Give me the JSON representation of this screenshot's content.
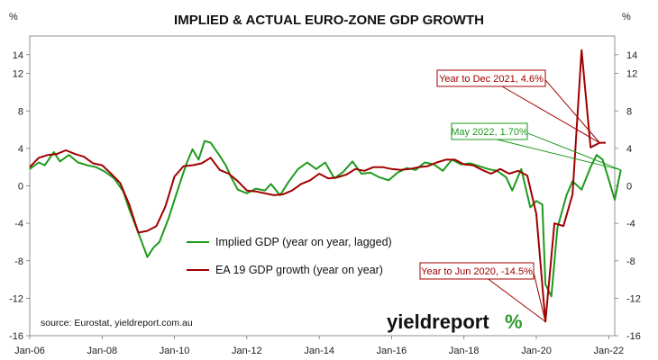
{
  "chart_data": {
    "type": "line",
    "title": "IMPLIED & ACTUAL EURO-ZONE GDP GROWTH",
    "left_unit": "%",
    "right_unit": "%",
    "xlim": [
      "2006-01",
      "2022-03"
    ],
    "ylim": [
      -16,
      16
    ],
    "yticks": [
      14,
      12,
      8,
      4,
      0,
      -4,
      -8,
      -12,
      -16
    ],
    "ytick_labels": [
      "14",
      "12",
      "8",
      "4",
      "0",
      "-4",
      "-8",
      "-12",
      "-16"
    ],
    "xticks": [
      "2006-01",
      "2008-01",
      "2010-01",
      "2012-01",
      "2014-01",
      "2016-01",
      "2018-01",
      "2020-01",
      "2022-01"
    ],
    "xtick_labels": [
      "Jan-06",
      "Jan-08",
      "Jan-10",
      "Jan-12",
      "Jan-14",
      "Jan-16",
      "Jan-18",
      "Jan-20",
      "Jan-22"
    ],
    "grid": false,
    "legend_position": "center-left",
    "series": [
      {
        "name": "Implied GDP (year on year, lagged)",
        "color": "#1e9a1e",
        "points": [
          [
            "2006-01",
            1.8
          ],
          [
            "2006-04",
            2.5
          ],
          [
            "2006-06",
            2.2
          ],
          [
            "2006-09",
            3.6
          ],
          [
            "2006-11",
            2.6
          ],
          [
            "2007-02",
            3.3
          ],
          [
            "2007-05",
            2.5
          ],
          [
            "2007-08",
            2.2
          ],
          [
            "2007-11",
            2.0
          ],
          [
            "2008-02",
            1.5
          ],
          [
            "2008-05",
            0.8
          ],
          [
            "2008-08",
            -0.6
          ],
          [
            "2008-10",
            -2.5
          ],
          [
            "2009-01",
            -5.0
          ],
          [
            "2009-04",
            -7.6
          ],
          [
            "2009-06",
            -6.6
          ],
          [
            "2009-08",
            -6.0
          ],
          [
            "2009-11",
            -3.5
          ],
          [
            "2010-01",
            -1.5
          ],
          [
            "2010-03",
            0.5
          ],
          [
            "2010-05",
            2.4
          ],
          [
            "2010-07",
            3.9
          ],
          [
            "2010-09",
            2.8
          ],
          [
            "2010-11",
            4.8
          ],
          [
            "2011-01",
            4.6
          ],
          [
            "2011-04",
            3.2
          ],
          [
            "2011-06",
            2.2
          ],
          [
            "2011-08",
            0.8
          ],
          [
            "2011-10",
            -0.4
          ],
          [
            "2012-01",
            -0.8
          ],
          [
            "2012-04",
            -0.3
          ],
          [
            "2012-07",
            -0.5
          ],
          [
            "2012-09",
            0.2
          ],
          [
            "2012-12",
            -1.0
          ],
          [
            "2013-03",
            0.5
          ],
          [
            "2013-06",
            1.8
          ],
          [
            "2013-09",
            2.5
          ],
          [
            "2013-12",
            1.8
          ],
          [
            "2014-03",
            2.5
          ],
          [
            "2014-06",
            0.8
          ],
          [
            "2014-09",
            1.5
          ],
          [
            "2014-12",
            2.6
          ],
          [
            "2015-03",
            1.3
          ],
          [
            "2015-06",
            1.4
          ],
          [
            "2015-09",
            0.9
          ],
          [
            "2015-12",
            0.6
          ],
          [
            "2016-03",
            1.4
          ],
          [
            "2016-06",
            1.9
          ],
          [
            "2016-09",
            1.7
          ],
          [
            "2016-12",
            2.5
          ],
          [
            "2017-03",
            2.3
          ],
          [
            "2017-06",
            1.6
          ],
          [
            "2017-09",
            2.8
          ],
          [
            "2017-12",
            2.3
          ],
          [
            "2018-03",
            2.4
          ],
          [
            "2018-06",
            2.1
          ],
          [
            "2018-09",
            1.8
          ],
          [
            "2018-12",
            1.6
          ],
          [
            "2019-03",
            0.9
          ],
          [
            "2019-05",
            -0.5
          ],
          [
            "2019-08",
            1.8
          ],
          [
            "2019-11",
            -2.3
          ],
          [
            "2020-01",
            -1.6
          ],
          [
            "2020-03",
            -2.0
          ],
          [
            "2020-04",
            -10.5
          ],
          [
            "2020-06",
            -11.8
          ],
          [
            "2020-08",
            -4.5
          ],
          [
            "2020-11",
            -1.0
          ],
          [
            "2021-01",
            0.5
          ],
          [
            "2021-04",
            -0.4
          ],
          [
            "2021-07",
            2.0
          ],
          [
            "2021-09",
            3.3
          ],
          [
            "2021-11",
            2.8
          ],
          [
            "2022-01",
            0.7
          ],
          [
            "2022-03",
            -1.5
          ],
          [
            "2022-05",
            1.7
          ]
        ]
      },
      {
        "name": "EA 19 GDP growth (year on year)",
        "color": "#a00000",
        "points": [
          [
            "2006-01",
            2.0
          ],
          [
            "2006-04",
            3.0
          ],
          [
            "2006-07",
            3.3
          ],
          [
            "2006-10",
            3.4
          ],
          [
            "2007-01",
            3.8
          ],
          [
            "2007-04",
            3.4
          ],
          [
            "2007-07",
            3.1
          ],
          [
            "2007-10",
            2.4
          ],
          [
            "2008-01",
            2.2
          ],
          [
            "2008-04",
            1.3
          ],
          [
            "2008-07",
            0.3
          ],
          [
            "2008-10",
            -2.0
          ],
          [
            "2009-01",
            -5.0
          ],
          [
            "2009-04",
            -4.8
          ],
          [
            "2009-07",
            -4.3
          ],
          [
            "2009-10",
            -2.2
          ],
          [
            "2010-01",
            1.0
          ],
          [
            "2010-04",
            2.1
          ],
          [
            "2010-07",
            2.2
          ],
          [
            "2010-10",
            2.4
          ],
          [
            "2011-01",
            3.0
          ],
          [
            "2011-04",
            1.7
          ],
          [
            "2011-07",
            1.3
          ],
          [
            "2011-10",
            0.5
          ],
          [
            "2012-01",
            -0.5
          ],
          [
            "2012-04",
            -0.6
          ],
          [
            "2012-07",
            -0.8
          ],
          [
            "2012-10",
            -1.0
          ],
          [
            "2013-01",
            -0.9
          ],
          [
            "2013-04",
            -0.5
          ],
          [
            "2013-07",
            0.2
          ],
          [
            "2013-10",
            0.6
          ],
          [
            "2014-01",
            1.3
          ],
          [
            "2014-04",
            0.8
          ],
          [
            "2014-07",
            0.9
          ],
          [
            "2014-10",
            1.2
          ],
          [
            "2015-01",
            1.8
          ],
          [
            "2015-04",
            1.6
          ],
          [
            "2015-07",
            2.0
          ],
          [
            "2015-10",
            2.0
          ],
          [
            "2016-01",
            1.8
          ],
          [
            "2016-04",
            1.7
          ],
          [
            "2016-07",
            1.8
          ],
          [
            "2016-10",
            2.0
          ],
          [
            "2017-01",
            2.1
          ],
          [
            "2017-04",
            2.5
          ],
          [
            "2017-07",
            2.8
          ],
          [
            "2017-10",
            2.8
          ],
          [
            "2018-01",
            2.3
          ],
          [
            "2018-04",
            2.2
          ],
          [
            "2018-07",
            1.7
          ],
          [
            "2018-10",
            1.3
          ],
          [
            "2019-01",
            1.8
          ],
          [
            "2019-04",
            1.3
          ],
          [
            "2019-07",
            1.6
          ],
          [
            "2019-10",
            1.1
          ],
          [
            "2020-01",
            -3.0
          ],
          [
            "2020-04",
            -14.5
          ],
          [
            "2020-07",
            -4.0
          ],
          [
            "2020-10",
            -4.3
          ],
          [
            "2021-01",
            -0.9
          ],
          [
            "2021-04",
            14.5
          ],
          [
            "2021-07",
            4.1
          ],
          [
            "2021-10",
            4.6
          ],
          [
            "2021-12",
            4.6
          ]
        ]
      }
    ],
    "annotations": [
      {
        "text": "Year to Dec 2021, 4.6%",
        "color": "#a00000",
        "point": [
          "2021-10",
          4.6
        ]
      },
      {
        "text": "May 2022, 1.70%",
        "color": "#1e9a1e",
        "point": [
          "2022-05",
          1.7
        ]
      },
      {
        "text": "Year to Jun 2020, -14.5%",
        "color": "#a00000",
        "point": [
          "2020-04",
          -14.5
        ]
      }
    ],
    "source": "source: Eurostat, yieldreport.com.au"
  },
  "branding": {
    "logo_text": "yieldreport",
    "logo_pct": "%",
    "logo_color": "#2e9b2e"
  }
}
